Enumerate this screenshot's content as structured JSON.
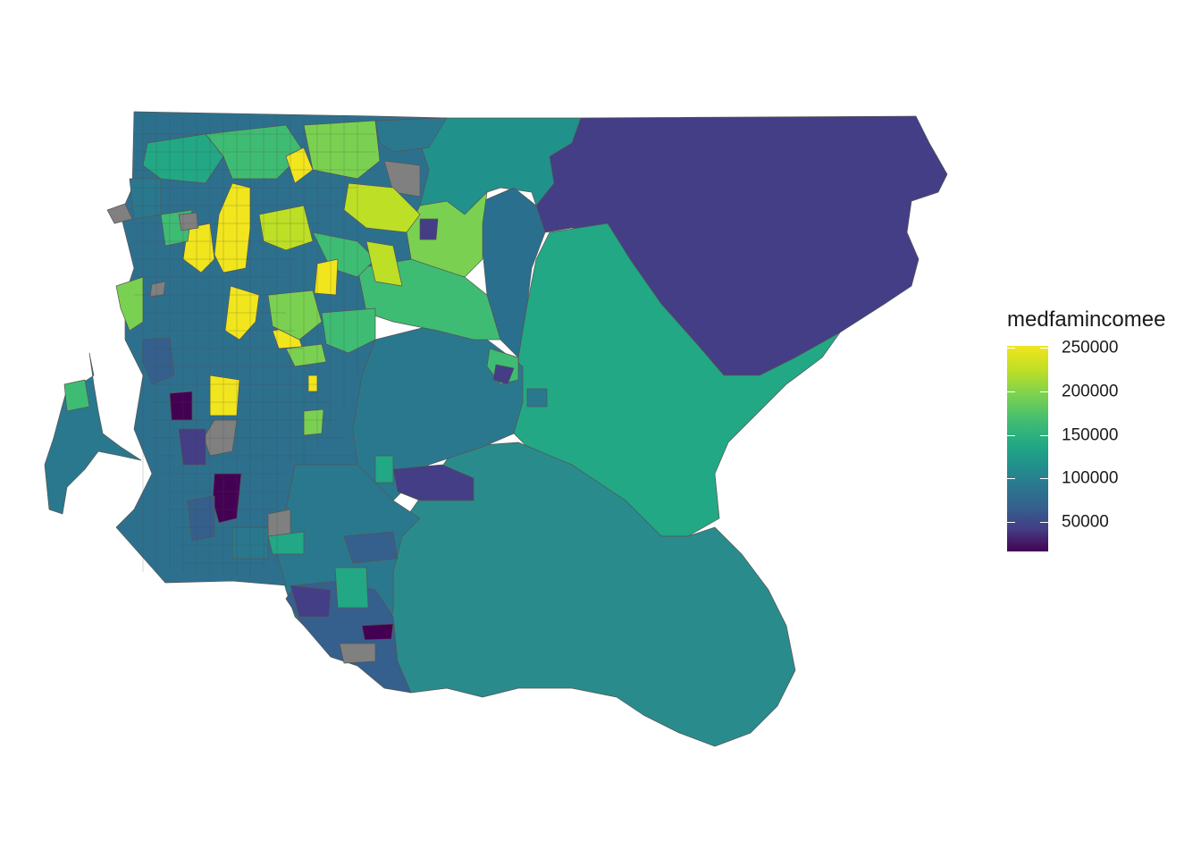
{
  "legend": {
    "title": "medfamincomee",
    "ticks": [
      {
        "label": "250000",
        "value": 250000
      },
      {
        "label": "200000",
        "value": 200000
      },
      {
        "label": "150000",
        "value": 150000
      },
      {
        "label": "100000",
        "value": 100000
      },
      {
        "label": "50000",
        "value": 50000
      }
    ],
    "colors": [
      "#440154",
      "#433e85",
      "#355f8d",
      "#2a788e",
      "#21918c",
      "#22a884",
      "#3fbc73",
      "#7ad151",
      "#bddf26",
      "#f1e51d"
    ],
    "na_color": "#808080"
  }
}
